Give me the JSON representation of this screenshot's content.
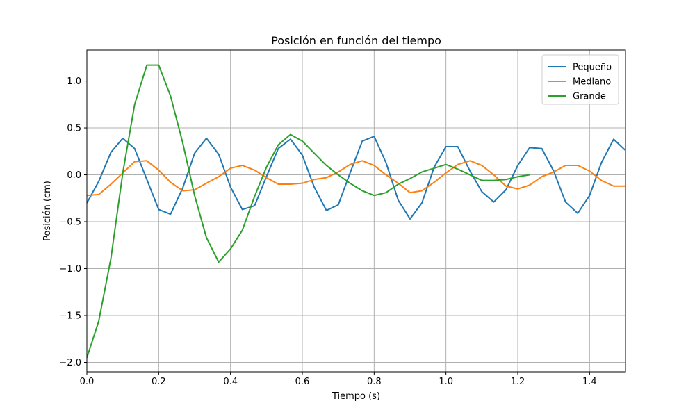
{
  "chart_data": {
    "type": "line",
    "title": "Posición en función del tiempo",
    "xlabel": "Tiempo (s)",
    "ylabel": "Posición (cm)",
    "xlim": [
      0,
      1.5
    ],
    "ylim": [
      -2.1,
      1.33
    ],
    "xticks": [
      0.0,
      0.2,
      0.4,
      0.6,
      0.8,
      1.0,
      1.2,
      1.4
    ],
    "xtick_labels": [
      "0.0",
      "0.2",
      "0.4",
      "0.6",
      "0.8",
      "1.0",
      "1.2",
      "1.4"
    ],
    "yticks": [
      -2.0,
      -1.5,
      -1.0,
      -0.5,
      0.0,
      0.5,
      1.0
    ],
    "ytick_labels": [
      "−2.0",
      "−1.5",
      "−1.0",
      "−0.5",
      "0.0",
      "0.5",
      "1.0"
    ],
    "grid": true,
    "legend": "top-right",
    "series": [
      {
        "name": "Pequeño",
        "color": "#1f77b4",
        "x": [
          0.0,
          0.033,
          0.067,
          0.1,
          0.133,
          0.167,
          0.2,
          0.233,
          0.267,
          0.3,
          0.333,
          0.367,
          0.4,
          0.433,
          0.467,
          0.5,
          0.533,
          0.567,
          0.6,
          0.633,
          0.667,
          0.7,
          0.733,
          0.767,
          0.8,
          0.833,
          0.867,
          0.9,
          0.933,
          0.967,
          1.0,
          1.033,
          1.067,
          1.1,
          1.133,
          1.167,
          1.2,
          1.233,
          1.267,
          1.3,
          1.333,
          1.367,
          1.4,
          1.433,
          1.467,
          1.5
        ],
        "y": [
          -0.3,
          -0.07,
          0.24,
          0.39,
          0.28,
          -0.05,
          -0.37,
          -0.42,
          -0.14,
          0.23,
          0.39,
          0.22,
          -0.13,
          -0.37,
          -0.33,
          -0.02,
          0.28,
          0.38,
          0.21,
          -0.13,
          -0.38,
          -0.32,
          0.02,
          0.36,
          0.41,
          0.13,
          -0.27,
          -0.47,
          -0.3,
          0.08,
          0.3,
          0.3,
          0.04,
          -0.18,
          -0.29,
          -0.16,
          0.1,
          0.29,
          0.28,
          0.04,
          -0.29,
          -0.41,
          -0.22,
          0.13,
          0.38,
          0.26
        ]
      },
      {
        "name": "Mediano",
        "color": "#ff7f0e",
        "x": [
          0.0,
          0.033,
          0.067,
          0.1,
          0.133,
          0.167,
          0.2,
          0.233,
          0.267,
          0.3,
          0.333,
          0.367,
          0.4,
          0.433,
          0.467,
          0.5,
          0.533,
          0.567,
          0.6,
          0.633,
          0.667,
          0.7,
          0.733,
          0.767,
          0.8,
          0.833,
          0.867,
          0.9,
          0.933,
          0.967,
          1.0,
          1.033,
          1.067,
          1.1,
          1.133,
          1.167,
          1.2,
          1.233,
          1.267,
          1.3,
          1.333,
          1.367,
          1.4,
          1.433,
          1.467,
          1.5
        ],
        "y": [
          -0.22,
          -0.21,
          -0.1,
          0.02,
          0.14,
          0.15,
          0.05,
          -0.08,
          -0.17,
          -0.16,
          -0.09,
          -0.02,
          0.07,
          0.1,
          0.05,
          -0.03,
          -0.1,
          -0.1,
          -0.09,
          -0.05,
          -0.03,
          0.03,
          0.11,
          0.15,
          0.1,
          0.0,
          -0.09,
          -0.19,
          -0.17,
          -0.08,
          0.02,
          0.11,
          0.15,
          0.1,
          0.0,
          -0.12,
          -0.15,
          -0.11,
          -0.02,
          0.03,
          0.1,
          0.1,
          0.04,
          -0.06,
          -0.12,
          -0.12
        ]
      },
      {
        "name": "Grande",
        "color": "#2ca02c",
        "x": [
          0.0,
          0.033,
          0.067,
          0.1,
          0.133,
          0.167,
          0.2,
          0.233,
          0.267,
          0.3,
          0.333,
          0.367,
          0.4,
          0.433,
          0.467,
          0.5,
          0.533,
          0.567,
          0.6,
          0.633,
          0.667,
          0.7,
          0.733,
          0.767,
          0.8,
          0.833,
          0.867,
          0.9,
          0.933,
          0.967,
          1.0,
          1.033,
          1.067,
          1.1,
          1.133,
          1.167,
          1.2,
          1.233
        ],
        "y": [
          -1.95,
          -1.56,
          -0.89,
          0.02,
          0.75,
          1.17,
          1.17,
          0.84,
          0.34,
          -0.22,
          -0.67,
          -0.93,
          -0.79,
          -0.59,
          -0.23,
          0.08,
          0.32,
          0.43,
          0.36,
          0.23,
          0.1,
          0.0,
          -0.09,
          -0.17,
          -0.22,
          -0.19,
          -0.1,
          -0.04,
          0.03,
          0.07,
          0.11,
          0.06,
          0.0,
          -0.06,
          -0.06,
          -0.05,
          -0.02,
          0.0
        ]
      }
    ]
  }
}
